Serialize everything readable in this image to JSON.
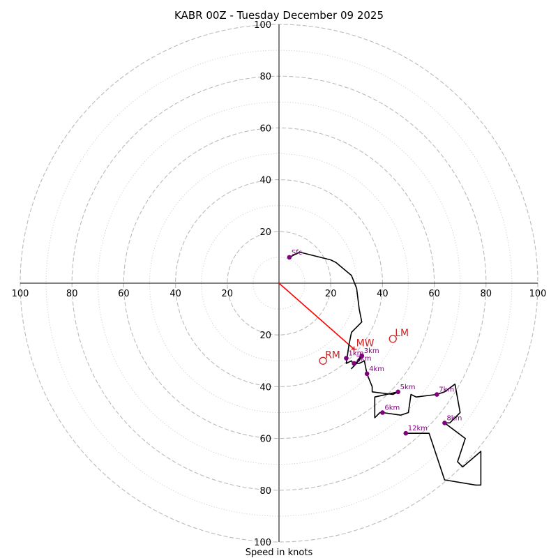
{
  "chart_data": {
    "type": "hodograph",
    "title": "KABR 00Z - Tuesday December 09 2025",
    "xlabel": "Speed in knots",
    "units": "knots",
    "range": [
      -100,
      100
    ],
    "rings_major": [
      20,
      40,
      60,
      80,
      100
    ],
    "rings_minor": [
      10,
      30,
      50,
      70,
      90
    ],
    "tick_labels": {
      "top": [
        "20",
        "40",
        "60",
        "80",
        "100"
      ],
      "bottom": [
        "20",
        "40",
        "60",
        "80",
        "100"
      ],
      "left": [
        "20",
        "40",
        "60",
        "80",
        "100"
      ],
      "right": [
        "20",
        "40",
        "60",
        "80",
        "100"
      ]
    },
    "trace": [
      [
        4,
        10
      ],
      [
        8,
        12
      ],
      [
        20,
        9
      ],
      [
        22,
        8
      ],
      [
        28,
        3
      ],
      [
        30,
        -2
      ],
      [
        31,
        -10
      ],
      [
        32,
        -15
      ],
      [
        30,
        -17
      ],
      [
        28,
        -19
      ],
      [
        27,
        -24
      ],
      [
        26,
        -31
      ],
      [
        28,
        -30
      ],
      [
        29,
        -32
      ],
      [
        28,
        -33
      ],
      [
        30,
        -31
      ],
      [
        31,
        -29
      ],
      [
        32,
        -28
      ],
      [
        31,
        -30
      ],
      [
        29,
        -31
      ],
      [
        31,
        -31
      ],
      [
        33,
        -30
      ],
      [
        34,
        -35
      ],
      [
        36,
        -40
      ],
      [
        36,
        -42
      ],
      [
        44,
        -43
      ],
      [
        46,
        -42
      ],
      [
        37,
        -44
      ],
      [
        37,
        -52
      ],
      [
        39,
        -50
      ],
      [
        40,
        -50
      ],
      [
        47,
        -51
      ],
      [
        50,
        -50
      ],
      [
        51,
        -43
      ],
      [
        53,
        -44
      ],
      [
        61,
        -43
      ],
      [
        64,
        -42
      ],
      [
        68,
        -39
      ],
      [
        70,
        -50
      ],
      [
        66,
        -54
      ],
      [
        64,
        -54
      ],
      [
        72,
        -60
      ],
      [
        70,
        -66
      ],
      [
        69,
        -69
      ],
      [
        71,
        -71
      ],
      [
        78,
        -65
      ],
      [
        78,
        -78
      ],
      [
        76,
        -78
      ],
      [
        64,
        -76
      ],
      [
        58,
        -58
      ],
      [
        49,
        -58
      ]
    ],
    "height_markers": [
      {
        "label": "Sfc",
        "u": 4,
        "v": 10
      },
      {
        "label": "1km",
        "u": 26,
        "v": -29
      },
      {
        "label": "2km",
        "u": 29,
        "v": -31
      },
      {
        "label": "3km",
        "u": 32,
        "v": -28
      },
      {
        "label": "4km",
        "u": 34,
        "v": -35
      },
      {
        "label": "5km",
        "u": 46,
        "v": -42
      },
      {
        "label": "6km",
        "u": 40,
        "v": -50
      },
      {
        "label": "7km",
        "u": 61,
        "v": -43
      },
      {
        "label": "8km",
        "u": 64,
        "v": -54
      },
      {
        "label": "12km",
        "u": 49,
        "v": -58
      }
    ],
    "motions": [
      {
        "label": "RM",
        "u": 17,
        "v": -30
      },
      {
        "label": "LM",
        "u": 44,
        "v": -21.5
      },
      {
        "label": "MW",
        "u": 29,
        "v": -25.5,
        "shape": "cross"
      }
    ],
    "shear_vector": {
      "from": [
        0,
        0
      ],
      "to": [
        29,
        -25.5
      ]
    },
    "colors": {
      "trace": "#000000",
      "marker": "#800080",
      "motion": "#cc2222",
      "shear": "#ff0000",
      "ring": "#bbbbbb",
      "ring_minor": "#d0d0d0"
    }
  }
}
